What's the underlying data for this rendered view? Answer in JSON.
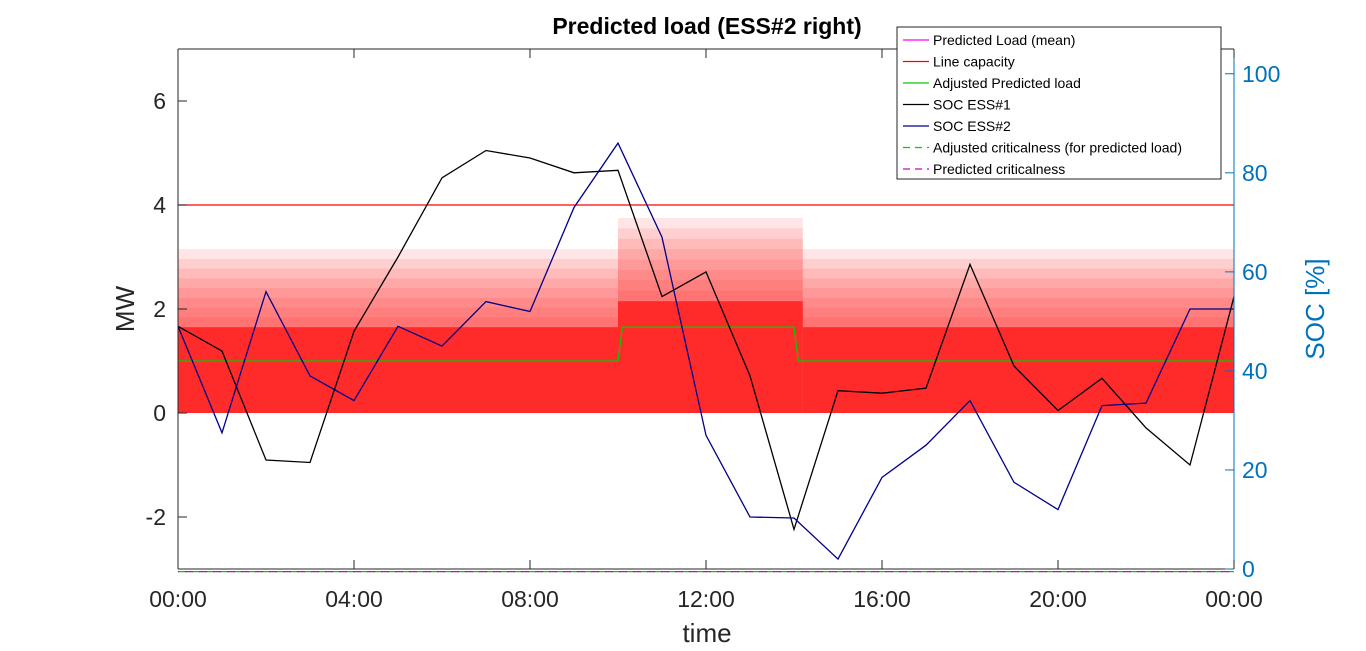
{
  "chart_data": {
    "type": "line",
    "title": "Predicted load (ESS#2 right)",
    "xlabel": "time",
    "ylabel": "MW",
    "ylabel_right": "SOC [%]",
    "xlim": [
      0,
      24
    ],
    "ylim": [
      -3,
      7
    ],
    "ylim_right": [
      0,
      105
    ],
    "x_ticks": [
      0,
      4,
      8,
      12,
      16,
      20,
      24
    ],
    "x_tick_labels": [
      "00:00",
      "04:00",
      "08:00",
      "12:00",
      "16:00",
      "20:00",
      "00:00"
    ],
    "y_ticks": [
      -2,
      0,
      2,
      4,
      6
    ],
    "y_tick_labels": [
      "-2",
      "0",
      "2",
      "4",
      "6"
    ],
    "y_ticks_right": [
      0,
      20,
      40,
      60,
      80,
      100
    ],
    "y_tick_labels_right": [
      "0",
      "20",
      "40",
      "60",
      "80",
      "100"
    ],
    "grid": false,
    "legend_position": "top-right",
    "colors": {
      "band": "#ff2b2b",
      "predicted_mean": "#ff00ff",
      "line_capacity": "#ff0000",
      "adjusted_load": "#00cc00",
      "soc1": "#000000",
      "soc2": "#00008b",
      "adjusted_crit": "#00cc00",
      "predicted_crit": "#cc00cc",
      "right_axis": "#0072BD"
    },
    "uncertainty_bands": [
      {
        "x_range": [
          0,
          10
        ],
        "upper": 1.65,
        "max_upper": 3.15,
        "lower": 0
      },
      {
        "x_range": [
          10,
          14.2
        ],
        "upper": 2.15,
        "max_upper": 3.75,
        "lower": 0
      },
      {
        "x_range": [
          14.2,
          24
        ],
        "upper": 1.65,
        "max_upper": 3.15,
        "lower": 0
      }
    ],
    "series": [
      {
        "name": "Predicted Load (mean)",
        "axis": "left",
        "style": "solid",
        "x": [],
        "y": []
      },
      {
        "name": "Line capacity",
        "axis": "left",
        "style": "solid",
        "x": [
          0,
          24
        ],
        "y": [
          4,
          4
        ]
      },
      {
        "name": "Adjusted Predicted load",
        "axis": "left",
        "style": "solid",
        "x": [
          0,
          10,
          10.1,
          14,
          14.1,
          24
        ],
        "y": [
          1.0,
          1.0,
          1.65,
          1.65,
          1.0,
          1.0
        ]
      },
      {
        "name": "SOC ESS#1",
        "axis": "right",
        "style": "solid",
        "x": [
          0,
          1,
          2,
          3,
          4,
          5,
          6,
          7,
          8,
          9,
          10,
          11,
          12,
          13,
          14,
          15,
          16,
          17,
          18,
          19,
          20,
          21,
          22,
          23,
          24
        ],
        "y": [
          49,
          44,
          22,
          21.5,
          48,
          63,
          79,
          84.5,
          83,
          80,
          80.5,
          55,
          60,
          39,
          8,
          36,
          35.5,
          36.5,
          61.5,
          41,
          32,
          38.5,
          28.5,
          21,
          55
        ]
      },
      {
        "name": "SOC ESS#2",
        "axis": "right",
        "style": "solid",
        "x": [
          0,
          1,
          2,
          3,
          4,
          5,
          6,
          7,
          8,
          9,
          10,
          11,
          12,
          13,
          14,
          15,
          16,
          17,
          18,
          19,
          20,
          21,
          22,
          23,
          24
        ],
        "y": [
          49,
          27.5,
          56,
          39,
          34,
          49,
          45,
          54,
          52,
          73,
          86,
          67,
          27,
          10.5,
          10.3,
          2,
          18.5,
          25,
          34,
          17.5,
          12,
          33,
          33.5,
          52.5,
          52.5
        ]
      },
      {
        "name": "Adjusted criticalness (for predicted load)",
        "axis": "left",
        "style": "dashed",
        "x": [
          0,
          24
        ],
        "y": [
          -3.05,
          -3.05
        ]
      },
      {
        "name": "Predicted criticalness",
        "axis": "left",
        "style": "dashed",
        "x": [
          0,
          24
        ],
        "y": [
          -3.05,
          -3.05
        ]
      }
    ]
  }
}
